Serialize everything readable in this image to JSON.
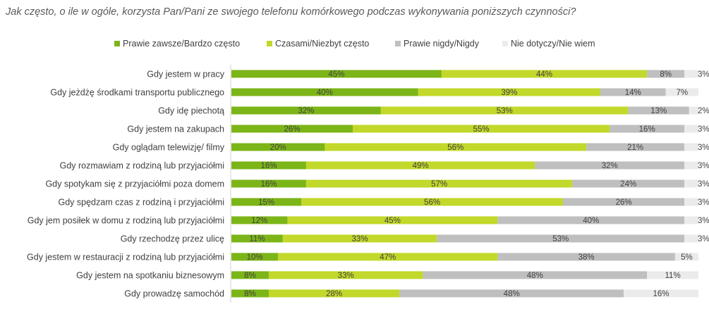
{
  "chart_data": {
    "type": "bar",
    "orientation": "horizontal",
    "stacked": true,
    "title": "Jak często, o ile w ogóle, korzysta Pan/Pani ze swojego telefonu komórkowego podczas wykonywania poniższych czynności?",
    "categories": [
      "Gdy jestem w pracy",
      "Gdy jeżdżę środkami transportu publicznego",
      "Gdy idę piechotą",
      "Gdy jestem na zakupach",
      "Gdy oglądam telewizję/ filmy",
      "Gdy rozmawiam z rodziną lub przyjaciółmi",
      "Gdy spotykam się z przyjaciółmi poza domem",
      "Gdy spędzam czas z rodziną i przyjaciółmi",
      "Gdy jem posiłek w domu z rodziną lub przyjaciółmi",
      "Gdy rzechodzę przez ulicę",
      "Gdy jestem w restauracji z rodziną lub przyjaciółmi",
      "Gdy jestem na spotkaniu biznesowym",
      "Gdy prowadzę samochód"
    ],
    "series": [
      {
        "name": "Prawie zawsze/Bardzo często",
        "color": "#7cb518",
        "values": [
          45,
          40,
          32,
          26,
          20,
          16,
          16,
          15,
          12,
          11,
          10,
          8,
          8
        ]
      },
      {
        "name": "Czasami/Niezbyt często",
        "color": "#c2d82a",
        "values": [
          44,
          39,
          53,
          55,
          56,
          49,
          57,
          56,
          45,
          33,
          47,
          33,
          28
        ]
      },
      {
        "name": "Prawie nigdy/Nigdy",
        "color": "#bfbfbf",
        "values": [
          8,
          14,
          13,
          16,
          21,
          32,
          24,
          26,
          40,
          53,
          38,
          48,
          48
        ]
      },
      {
        "name": "Nie dotyczy/Nie wiem",
        "color": "#ebebeb",
        "values": [
          3,
          7,
          2,
          3,
          3,
          3,
          3,
          3,
          3,
          3,
          5,
          11,
          16
        ]
      }
    ],
    "value_suffix": "%",
    "xlim": [
      0,
      100
    ],
    "legend_position": "top",
    "grid": false
  }
}
